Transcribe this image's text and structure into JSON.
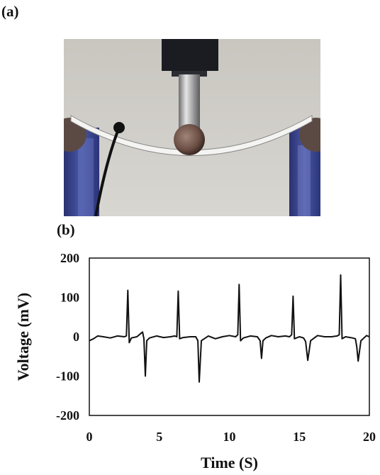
{
  "panels": {
    "a_label": "(a)",
    "b_label": "(b)"
  },
  "chart_data": {
    "type": "line",
    "title": "",
    "xlabel": "Time (S)",
    "ylabel": "Voltage (mV)",
    "xlim": [
      0,
      20
    ],
    "ylim": [
      -200,
      200
    ],
    "xticks": [
      0,
      5,
      10,
      15,
      20
    ],
    "yticks": [
      200,
      100,
      0,
      -100,
      -200
    ],
    "grid": false,
    "legend": "none",
    "line_color": "#111111",
    "series": [
      {
        "x": [
          0,
          0.3,
          0.6,
          1.0,
          1.5,
          2.0,
          2.5,
          2.65,
          2.75,
          2.85,
          3.0,
          3.4,
          3.8,
          3.9,
          4.0,
          4.1,
          4.3,
          4.8,
          5.3,
          5.8,
          6.1,
          6.25,
          6.35,
          6.45,
          6.7,
          7.2,
          7.6,
          7.75,
          7.85,
          8.0,
          8.5,
          9.0,
          9.5,
          10.0,
          10.45,
          10.6,
          10.7,
          10.8,
          11.0,
          11.5,
          12.0,
          12.2,
          12.3,
          12.4,
          12.6,
          13.0,
          13.5,
          14.0,
          14.3,
          14.45,
          14.55,
          14.65,
          15.0,
          15.3,
          15.45,
          15.6,
          15.8,
          16.3,
          16.8,
          17.3,
          17.7,
          17.85,
          17.95,
          18.05,
          18.3,
          18.8,
          19.0,
          19.1,
          19.2,
          19.4,
          19.8,
          20.0
        ],
        "values": [
          -10,
          -5,
          2,
          0,
          -3,
          2,
          0,
          2,
          118,
          -15,
          -3,
          0,
          12,
          -5,
          -100,
          -10,
          -3,
          2,
          -2,
          0,
          2,
          0,
          116,
          -5,
          -2,
          0,
          0,
          -10,
          -115,
          -10,
          2,
          -5,
          0,
          3,
          0,
          5,
          133,
          -10,
          -3,
          2,
          0,
          -10,
          -55,
          -10,
          -3,
          3,
          0,
          2,
          0,
          5,
          103,
          -5,
          0,
          -3,
          -12,
          -60,
          -10,
          3,
          0,
          0,
          2,
          5,
          157,
          -5,
          0,
          -3,
          -5,
          -25,
          -62,
          -10,
          3,
          0
        ]
      }
    ]
  }
}
